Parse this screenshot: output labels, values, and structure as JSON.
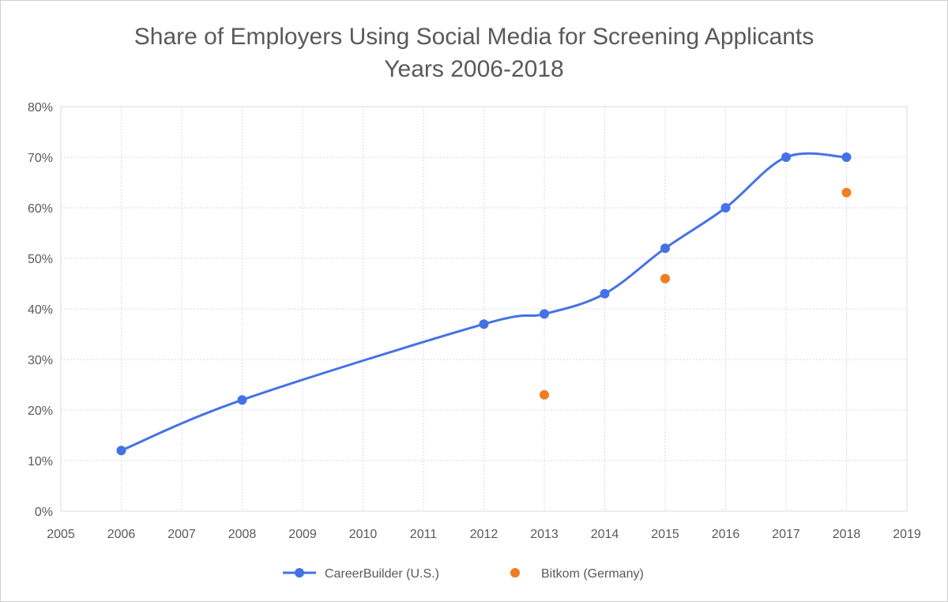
{
  "chart_data": {
    "type": "scatter",
    "title_lines": [
      "Share of Employers Using Social Media for Screening Applicants",
      "Years 2006-2018"
    ],
    "xlabel": "",
    "ylabel": "",
    "xlim": [
      2005,
      2019
    ],
    "ylim": [
      0,
      80
    ],
    "x_ticks": [
      "2005",
      "2006",
      "2007",
      "2008",
      "2009",
      "2010",
      "2011",
      "2012",
      "2013",
      "2014",
      "2015",
      "2016",
      "2017",
      "2018",
      "2019"
    ],
    "y_ticks": [
      "0%",
      "10%",
      "20%",
      "30%",
      "40%",
      "50%",
      "60%",
      "70%",
      "80%"
    ],
    "grid": true,
    "legend_position": "bottom",
    "series": [
      {
        "name": "CareerBuilder (U.S.)",
        "color": "#4472e6",
        "mode": "smooth-line-with-markers",
        "x": [
          2006,
          2008,
          2012,
          2013,
          2014,
          2015,
          2016,
          2017,
          2018
        ],
        "y": [
          12,
          22,
          37,
          39,
          43,
          52,
          60,
          70,
          70
        ]
      },
      {
        "name": "Bitkom (Germany)",
        "color": "#f07d22",
        "mode": "markers",
        "x": [
          2013,
          2015,
          2018
        ],
        "y": [
          23,
          46,
          63
        ]
      }
    ]
  }
}
